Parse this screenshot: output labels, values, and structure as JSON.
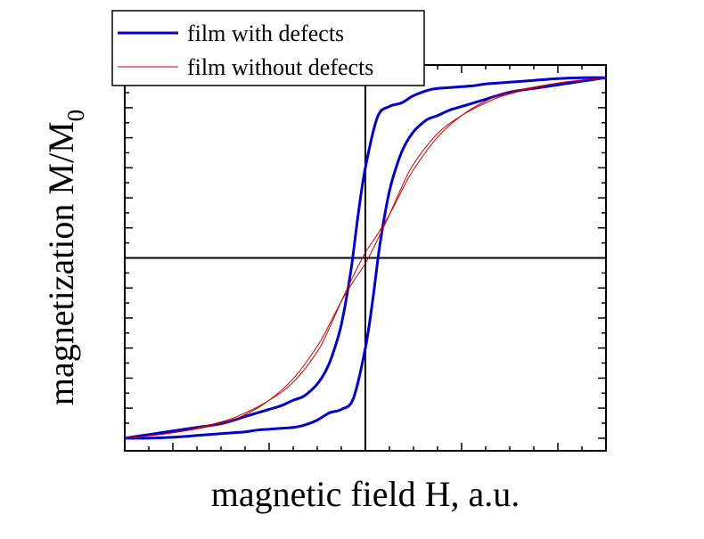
{
  "chart_data": {
    "type": "line",
    "xlabel": "magnetic field H, a.u.",
    "ylabel_main": "magnetization M/M",
    "ylabel_sub": "0",
    "xlim": [
      -1,
      1
    ],
    "ylim": [
      -1.07,
      1.07
    ],
    "grid": false,
    "zero_lines": true,
    "tick_labels_shown": false,
    "legend_position": "top-left",
    "series": [
      {
        "name": "film with defects",
        "color": "#0000cc",
        "branches": [
          {
            "x": [
              1.0,
              0.9,
              0.8,
              0.7,
              0.6,
              0.5,
              0.45,
              0.4,
              0.35,
              0.3,
              0.26,
              0.23,
              0.2,
              0.17,
              0.14,
              0.1,
              0.06,
              0.03,
              0.0,
              -0.05,
              -0.1,
              -0.15,
              -0.2,
              -0.26,
              -0.3,
              -0.35,
              -0.4,
              -0.45,
              -0.5,
              -0.6,
              -0.7,
              -0.8,
              -0.9,
              -1.0
            ],
            "y": [
              1.0,
              0.98,
              0.96,
              0.94,
              0.92,
              0.88,
              0.86,
              0.84,
              0.82,
              0.79,
              0.77,
              0.74,
              0.7,
              0.64,
              0.55,
              0.37,
              0.07,
              -0.24,
              -0.5,
              -0.78,
              -0.84,
              -0.86,
              -0.9,
              -0.93,
              -0.94,
              -0.945,
              -0.95,
              -0.955,
              -0.965,
              -0.975,
              -0.985,
              -0.995,
              -1.0,
              -1.0
            ]
          },
          {
            "x": [
              -1.0,
              -0.9,
              -0.8,
              -0.7,
              -0.6,
              -0.5,
              -0.45,
              -0.4,
              -0.35,
              -0.3,
              -0.26,
              -0.23,
              -0.2,
              -0.17,
              -0.14,
              -0.1,
              -0.06,
              -0.03,
              0.0,
              0.05,
              0.1,
              0.15,
              0.2,
              0.26,
              0.3,
              0.35,
              0.4,
              0.45,
              0.5,
              0.6,
              0.7,
              0.8,
              0.9,
              1.0
            ],
            "y": [
              -1.0,
              -0.98,
              -0.96,
              -0.94,
              -0.92,
              -0.88,
              -0.86,
              -0.84,
              -0.82,
              -0.79,
              -0.77,
              -0.74,
              -0.7,
              -0.64,
              -0.55,
              -0.37,
              -0.07,
              0.24,
              0.5,
              0.78,
              0.84,
              0.86,
              0.9,
              0.93,
              0.94,
              0.945,
              0.95,
              0.955,
              0.965,
              0.975,
              0.985,
              0.995,
              1.0,
              1.0
            ]
          }
        ]
      },
      {
        "name": "film without defects",
        "color": "#cc0000",
        "branches": [
          {
            "x": [
              1.0,
              0.8,
              0.6,
              0.5,
              0.4,
              0.3,
              0.2,
              0.15,
              0.1,
              0.05,
              0.0,
              -0.05,
              -0.1,
              -0.15,
              -0.2,
              -0.3,
              -0.4,
              -0.5,
              -0.6,
              -0.8,
              -1.0
            ],
            "y": [
              1.0,
              0.97,
              0.92,
              0.87,
              0.79,
              0.67,
              0.49,
              0.37,
              0.24,
              0.13,
              0.03,
              -0.1,
              -0.24,
              -0.39,
              -0.52,
              -0.69,
              -0.79,
              -0.86,
              -0.91,
              -0.97,
              -1.0
            ]
          },
          {
            "x": [
              -1.0,
              -0.8,
              -0.6,
              -0.5,
              -0.4,
              -0.3,
              -0.2,
              -0.15,
              -0.1,
              -0.05,
              0.0,
              0.05,
              0.1,
              0.15,
              0.2,
              0.3,
              0.4,
              0.5,
              0.6,
              0.8,
              1.0
            ],
            "y": [
              -1.0,
              -0.97,
              -0.92,
              -0.87,
              -0.79,
              -0.67,
              -0.49,
              -0.37,
              -0.24,
              -0.13,
              -0.03,
              0.1,
              0.24,
              0.39,
              0.52,
              0.69,
              0.79,
              0.86,
              0.91,
              0.97,
              1.0
            ]
          }
        ]
      }
    ]
  }
}
